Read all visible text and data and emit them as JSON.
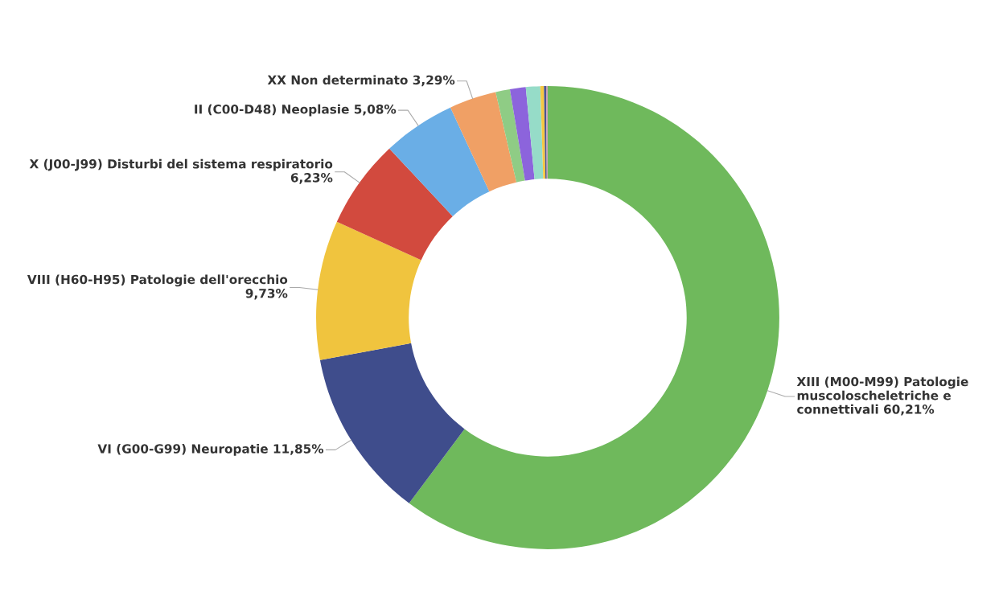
{
  "chart_data": {
    "type": "donut",
    "categories": [
      "XIII (M00-M99) Patologie muscoloscheletriche e connettivali",
      "VI (G00-G99) Neuropatie",
      "VIII (H60-H95) Patologie dell'orecchio",
      "X (J00-J99) Disturbi del sistema respiratorio",
      "II (C00-D48) Neoplasie",
      "XX Non determinato",
      null,
      null,
      null,
      null,
      null,
      null
    ],
    "values": [
      60.21,
      11.85,
      9.73,
      6.23,
      5.08,
      3.29,
      1.0,
      1.1,
      1.0,
      0.25,
      0.15,
      0.11
    ],
    "colors": [
      "#6fb95c",
      "#3f4d8c",
      "#f0c43e",
      "#d24a3e",
      "#6aaee6",
      "#f0a065",
      "#8fcc85",
      "#8c64dc",
      "#96dcc8",
      "#f5c842",
      "#4a5590",
      "#c8a0b4"
    ],
    "value_labels": [
      "60,21%",
      "11,85%",
      "9,73%",
      "6,23%",
      "5,08%",
      "3,29%",
      null,
      null,
      null,
      null,
      null,
      null
    ]
  }
}
